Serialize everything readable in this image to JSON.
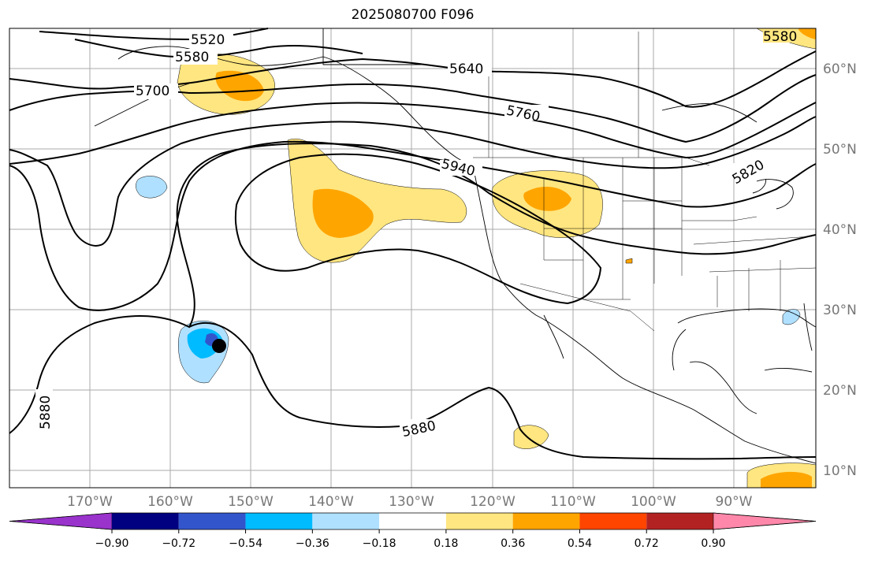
{
  "title": "2025080700 F096",
  "map": {
    "lat_ticks": [
      "60°N",
      "50°N",
      "40°N",
      "30°N",
      "20°N",
      "10°N"
    ],
    "lon_ticks": [
      "170°W",
      "160°W",
      "150°W",
      "140°W",
      "130°W",
      "120°W",
      "110°W",
      "100°W",
      "90°W"
    ],
    "contour_labels": [
      "5520",
      "5580",
      "5640",
      "5700",
      "5760",
      "5820",
      "5940",
      "5880",
      "5880",
      "5580"
    ],
    "storm_marker": "hurricane-center"
  },
  "colorbar": {
    "ticks": [
      "−0.90",
      "−0.72",
      "−0.54",
      "−0.36",
      "−0.18",
      "0.18",
      "0.36",
      "0.54",
      "0.72",
      "0.90"
    ],
    "colors": [
      "#9933cc",
      "#000080",
      "#3355cc",
      "#00bbff",
      "#b0e0ff",
      "#ffffff",
      "#ffe680",
      "#ffa500",
      "#ff4500",
      "#b22222",
      "#ff88aa"
    ]
  }
}
